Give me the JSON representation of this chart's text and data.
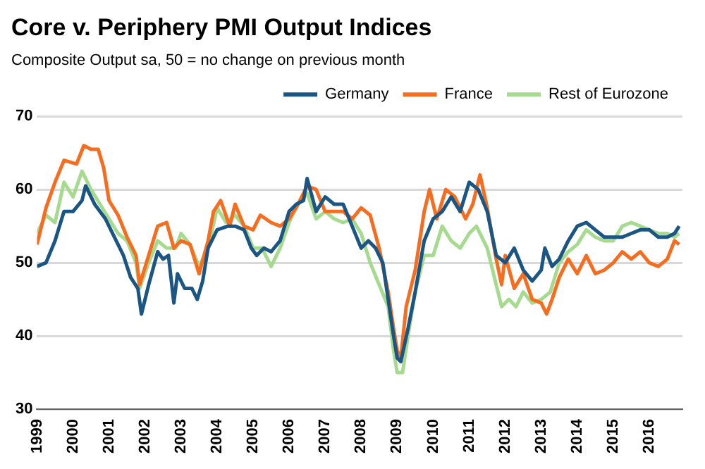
{
  "chart_data": {
    "type": "line",
    "title": "Core v. Periphery PMI Output Indices",
    "subtitle": "Composite Output sa, 50 = no change on previous month",
    "xlim": [
      1999,
      2016.92
    ],
    "xticks": [
      1999,
      2000,
      2001,
      2002,
      2003,
      2004,
      2005,
      2006,
      2007,
      2008,
      2009,
      2010,
      2011,
      2012,
      2013,
      2014,
      2015,
      2016
    ],
    "ylim": [
      30,
      70
    ],
    "yticks": [
      30,
      40,
      50,
      60,
      70
    ],
    "grid": "y",
    "legend": "top right",
    "marker": "none",
    "line_style": "solid",
    "series": [
      {
        "name": "Germany",
        "color": "#1b5583",
        "x": [
          1999.0,
          1999.25,
          1999.5,
          1999.75,
          2000.0,
          2000.25,
          2000.35,
          2000.6,
          2000.9,
          2001.1,
          2001.4,
          2001.6,
          2001.8,
          2001.9,
          2002.1,
          2002.35,
          2002.5,
          2002.65,
          2002.8,
          2002.9,
          2003.1,
          2003.3,
          2003.45,
          2003.6,
          2003.75,
          2004.0,
          2004.3,
          2004.5,
          2004.75,
          2004.95,
          2005.1,
          2005.3,
          2005.5,
          2005.75,
          2006.0,
          2006.2,
          2006.4,
          2006.5,
          2006.75,
          2007.0,
          2007.25,
          2007.5,
          2007.75,
          2008.0,
          2008.2,
          2008.4,
          2008.6,
          2008.75,
          2008.9,
          2009.0,
          2009.1,
          2009.3,
          2009.5,
          2009.75,
          2010.0,
          2010.25,
          2010.5,
          2010.75,
          2011.0,
          2011.25,
          2011.5,
          2011.75,
          2012.0,
          2012.25,
          2012.5,
          2012.75,
          2013.0,
          2013.1,
          2013.3,
          2013.5,
          2013.75,
          2014.0,
          2014.25,
          2014.5,
          2014.75,
          2015.0,
          2015.25,
          2015.5,
          2015.75,
          2016.0,
          2016.25,
          2016.5,
          2016.7,
          2016.83
        ],
        "values": [
          49.5,
          50,
          53,
          57,
          57,
          58.5,
          60.5,
          58,
          56,
          54,
          51,
          48,
          46.5,
          43,
          47,
          51.5,
          50.5,
          51,
          44.5,
          48.5,
          46.5,
          46.5,
          45,
          47.5,
          52,
          54.5,
          55,
          55,
          54.5,
          52,
          51,
          52,
          51.5,
          53,
          57,
          58,
          58.5,
          61.5,
          57,
          59,
          58,
          58,
          55,
          52,
          53,
          52,
          50,
          45,
          40,
          37,
          36.5,
          41,
          46,
          53,
          56,
          57,
          59,
          57,
          61,
          60,
          57,
          51,
          50,
          52,
          49,
          47.5,
          49,
          52,
          49.5,
          50.5,
          53,
          55,
          55.5,
          54.5,
          53.5,
          53.5,
          53.5,
          54,
          54.5,
          54.5,
          53.5,
          53.5,
          54,
          55
        ]
      },
      {
        "name": "France",
        "color": "#f76d20",
        "x": [
          1999.0,
          1999.25,
          1999.5,
          1999.75,
          2000.1,
          2000.3,
          2000.5,
          2000.7,
          2000.85,
          2001.0,
          2001.25,
          2001.5,
          2001.75,
          2001.85,
          2002.1,
          2002.35,
          2002.6,
          2002.8,
          2003.0,
          2003.25,
          2003.5,
          2003.75,
          2003.9,
          2004.1,
          2004.35,
          2004.5,
          2004.75,
          2005.0,
          2005.2,
          2005.5,
          2005.75,
          2006.0,
          2006.25,
          2006.5,
          2006.75,
          2007.0,
          2007.25,
          2007.5,
          2007.75,
          2008.0,
          2008.25,
          2008.5,
          2008.75,
          2008.9,
          2009.0,
          2009.1,
          2009.25,
          2009.5,
          2009.75,
          2009.9,
          2010.1,
          2010.35,
          2010.6,
          2010.9,
          2011.1,
          2011.3,
          2011.5,
          2011.75,
          2011.9,
          2012.0,
          2012.25,
          2012.5,
          2012.75,
          2013.0,
          2013.15,
          2013.3,
          2013.5,
          2013.75,
          2014.0,
          2014.25,
          2014.5,
          2014.75,
          2015.0,
          2015.25,
          2015.5,
          2015.75,
          2016.0,
          2016.25,
          2016.5,
          2016.7,
          2016.83
        ],
        "values": [
          52.5,
          57.5,
          61,
          64,
          63.5,
          66,
          65.5,
          65.5,
          63,
          58.5,
          56.5,
          53.5,
          51,
          47,
          51,
          55,
          55.5,
          52,
          53,
          52.5,
          48.5,
          53,
          57,
          58.5,
          55,
          58,
          55,
          54.5,
          56.5,
          55.5,
          55,
          56,
          58,
          60.5,
          60,
          57,
          57,
          57,
          56,
          57.5,
          56.5,
          52,
          46,
          41,
          38,
          37,
          44,
          49,
          57,
          60,
          56,
          60,
          59,
          56,
          58,
          62,
          57.5,
          50.5,
          47,
          51,
          46.5,
          48.5,
          45,
          44.5,
          43,
          45,
          48,
          50.5,
          48.5,
          51,
          48.5,
          49,
          50,
          51.5,
          50.5,
          51.5,
          50,
          49.5,
          50.5,
          53,
          52.5
        ]
      },
      {
        "name": "Rest of Eurozone",
        "color": "#a6da8e",
        "x": [
          1999.0,
          1999.25,
          1999.5,
          1999.75,
          2000.0,
          2000.25,
          2000.5,
          2000.75,
          2001.0,
          2001.25,
          2001.5,
          2001.75,
          2001.85,
          2002.1,
          2002.35,
          2002.6,
          2002.85,
          2003.0,
          2003.25,
          2003.5,
          2003.75,
          2004.0,
          2004.25,
          2004.5,
          2004.75,
          2005.0,
          2005.25,
          2005.5,
          2005.75,
          2006.0,
          2006.25,
          2006.5,
          2006.75,
          2007.0,
          2007.25,
          2007.5,
          2007.75,
          2008.0,
          2008.25,
          2008.5,
          2008.75,
          2008.9,
          2009.0,
          2009.15,
          2009.3,
          2009.5,
          2009.75,
          2010.0,
          2010.25,
          2010.5,
          2010.75,
          2011.0,
          2011.2,
          2011.5,
          2011.75,
          2011.9,
          2012.1,
          2012.3,
          2012.5,
          2012.75,
          2013.0,
          2013.25,
          2013.5,
          2013.75,
          2014.0,
          2014.25,
          2014.5,
          2014.75,
          2015.0,
          2015.25,
          2015.5,
          2015.75,
          2016.0,
          2016.25,
          2016.5,
          2016.7,
          2016.83
        ],
        "values": [
          54,
          56.5,
          55.5,
          61,
          59,
          62.5,
          60,
          58,
          56,
          54,
          53,
          50,
          46.5,
          50,
          53,
          52,
          52,
          54,
          52.5,
          49.5,
          52,
          57.5,
          55.5,
          56.5,
          55,
          52,
          52,
          49.5,
          52,
          55.5,
          58,
          59.5,
          56,
          57,
          56,
          55.5,
          56,
          54,
          50,
          47,
          44,
          38,
          35,
          35,
          40,
          46,
          51,
          51,
          55,
          53,
          52,
          54,
          55,
          52,
          47,
          44,
          45,
          44,
          46,
          44.5,
          45,
          46,
          50,
          51.5,
          52.5,
          54.5,
          53.5,
          53,
          53,
          55,
          55.5,
          55,
          54.5,
          54,
          54,
          53.5,
          54
        ]
      }
    ]
  }
}
